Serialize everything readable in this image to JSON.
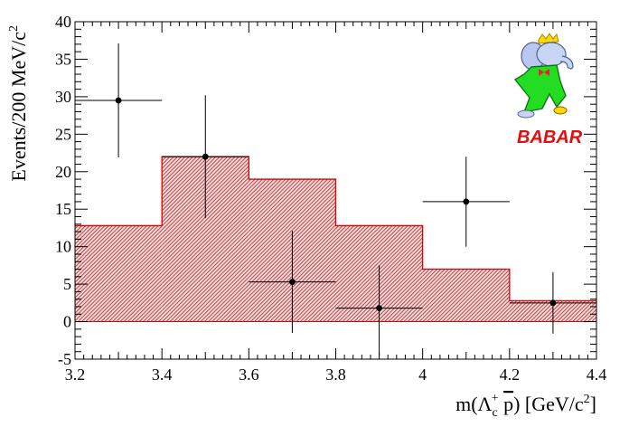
{
  "chart_data": {
    "type": "bar",
    "xlabel": "m(Λc+ p̄) [GeV/c2]",
    "xlabel_parts": {
      "pre": "m(Λ",
      "sub": "c",
      "sup": "+",
      "mid": " ",
      "pbar": "p",
      "post": ") [GeV/c",
      "exp": "2",
      "close": "]"
    },
    "ylabel": "Events/200 MeV/c2",
    "ylabel_parts": {
      "main": "Events/200 MeV/c",
      "exp": "2"
    },
    "xlim": [
      3.2,
      4.4
    ],
    "ylim": [
      -5,
      40
    ],
    "x_ticks": [
      3.2,
      3.4,
      3.6,
      3.8,
      4.0,
      4.2,
      4.4
    ],
    "x_tick_labels": [
      "3.2",
      "3.4",
      "3.6",
      "3.8",
      "4",
      "4.2",
      "4.4"
    ],
    "y_ticks": [
      -5,
      0,
      5,
      10,
      15,
      20,
      25,
      30,
      35,
      40
    ],
    "y_tick_labels": [
      "-5",
      "0",
      "5",
      "10",
      "15",
      "20",
      "25",
      "30",
      "35",
      "40"
    ],
    "histogram": {
      "bin_edges": [
        3.2,
        3.4,
        3.6,
        3.8,
        4.0,
        4.2,
        4.4
      ],
      "values": [
        12.8,
        22.0,
        19.0,
        12.8,
        7.0,
        2.8
      ],
      "fill_color": "#b03030",
      "line_color": "#e00000"
    },
    "points": {
      "x": [
        3.3,
        3.5,
        3.7,
        3.9,
        4.1,
        4.3
      ],
      "y": [
        29.5,
        22.0,
        5.3,
        1.8,
        16.0,
        2.5
      ],
      "yerr_low": [
        7.6,
        8.2,
        6.8,
        6.4,
        6.0,
        4.1
      ],
      "yerr_high": [
        7.6,
        8.2,
        6.8,
        5.7,
        6.0,
        4.1
      ],
      "xerr": [
        0.1,
        0.1,
        0.1,
        0.1,
        0.1,
        0.1
      ],
      "marker_color": "#000000"
    },
    "logo": {
      "text": "BABAR",
      "color": "#e01010"
    }
  }
}
